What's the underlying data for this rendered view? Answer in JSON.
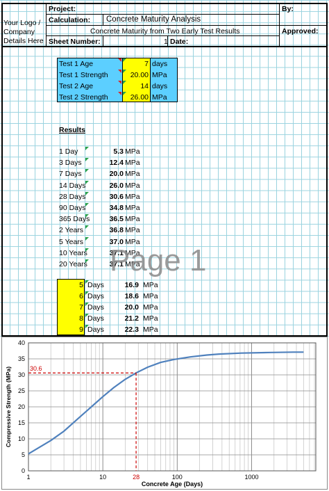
{
  "header": {
    "logo": [
      "Your Logo /",
      "Company",
      "Details Here"
    ],
    "project_label": "Project:",
    "calculation_label": "Calculation:",
    "calculation_value": "Concrete Maturity Analysis",
    "subtitle": "Concrete Maturity from Two Early Test Results",
    "sheet_number_label": "Sheet Number:",
    "sheet_number_value": "1",
    "date_label": "Date:",
    "by_label": "By:",
    "approved_label": "Approved:"
  },
  "inputs": [
    {
      "label": "Test 1 Age",
      "value": "7",
      "unit": "days"
    },
    {
      "label": "Test 1 Strength",
      "value": "20.00",
      "unit": "MPa"
    },
    {
      "label": "Test 2 Age",
      "value": "14",
      "unit": "days"
    },
    {
      "label": "Test 2 Strength",
      "value": "26.00",
      "unit": "MPa"
    }
  ],
  "results_title": "Results",
  "results": [
    {
      "label": "1 Day",
      "value": "5.3",
      "unit": "MPa"
    },
    {
      "label": "3 Days",
      "value": "12.4",
      "unit": "MPa"
    },
    {
      "label": "7 Days",
      "value": "20.0",
      "unit": "MPa"
    },
    {
      "label": "14 Days",
      "value": "26.0",
      "unit": "MPa"
    },
    {
      "label": "28 Days",
      "value": "30.6",
      "unit": "MPa"
    },
    {
      "label": "90 Days",
      "value": "34.8",
      "unit": "MPa"
    },
    {
      "label": "365 Days",
      "value": "36.5",
      "unit": "MPa"
    },
    {
      "label": "2 Years",
      "value": "36.8",
      "unit": "MPa"
    },
    {
      "label": "5 Years",
      "value": "37.0",
      "unit": "MPa"
    },
    {
      "label": "10 Years",
      "value": "37.1",
      "unit": "MPa"
    },
    {
      "label": "20 Years",
      "value": "37.1",
      "unit": "MPa"
    }
  ],
  "custom_ages": [
    {
      "age": "5",
      "days": "Days",
      "value": "16.9",
      "unit": "MPa"
    },
    {
      "age": "6",
      "days": "Days",
      "value": "18.6",
      "unit": "MPa"
    },
    {
      "age": "7",
      "days": "Days",
      "value": "20.0",
      "unit": "MPa"
    },
    {
      "age": "8",
      "days": "Days",
      "value": "21.2",
      "unit": "MPa"
    },
    {
      "age": "9",
      "days": "Days",
      "value": "22.3",
      "unit": "MPa"
    }
  ],
  "watermark": "Page 1",
  "colors": {
    "input_blue": "#5ccfff",
    "input_yellow": "#ffff00",
    "curve": "#4f81bd",
    "marker": "#cc0000",
    "grid": "#9ad3df"
  },
  "chart_data": {
    "type": "line",
    "xscale": "log",
    "xlim": [
      1,
      7300
    ],
    "ylim": [
      0,
      40
    ],
    "xticks": [
      "1",
      "10",
      "100",
      "1000"
    ],
    "yticks": [
      "0",
      "5",
      "10",
      "15",
      "20",
      "25",
      "30",
      "35",
      "40"
    ],
    "xlabel": "Concrete Age (Days)",
    "ylabel": "Compressive Strength (MPa)",
    "x": [
      1,
      2,
      3,
      5,
      7,
      10,
      14,
      20,
      28,
      40,
      60,
      90,
      150,
      250,
      365,
      730,
      1825,
      3650,
      5000
    ],
    "y": [
      5.3,
      9.5,
      12.4,
      17.0,
      20.0,
      23.2,
      26.0,
      28.6,
      30.6,
      32.4,
      33.9,
      34.8,
      35.6,
      36.2,
      36.5,
      36.8,
      37.0,
      37.1,
      37.1
    ],
    "marker": {
      "x": 28,
      "y": 30.6,
      "x_label": "28",
      "y_label": "30.6"
    },
    "grid": true
  }
}
